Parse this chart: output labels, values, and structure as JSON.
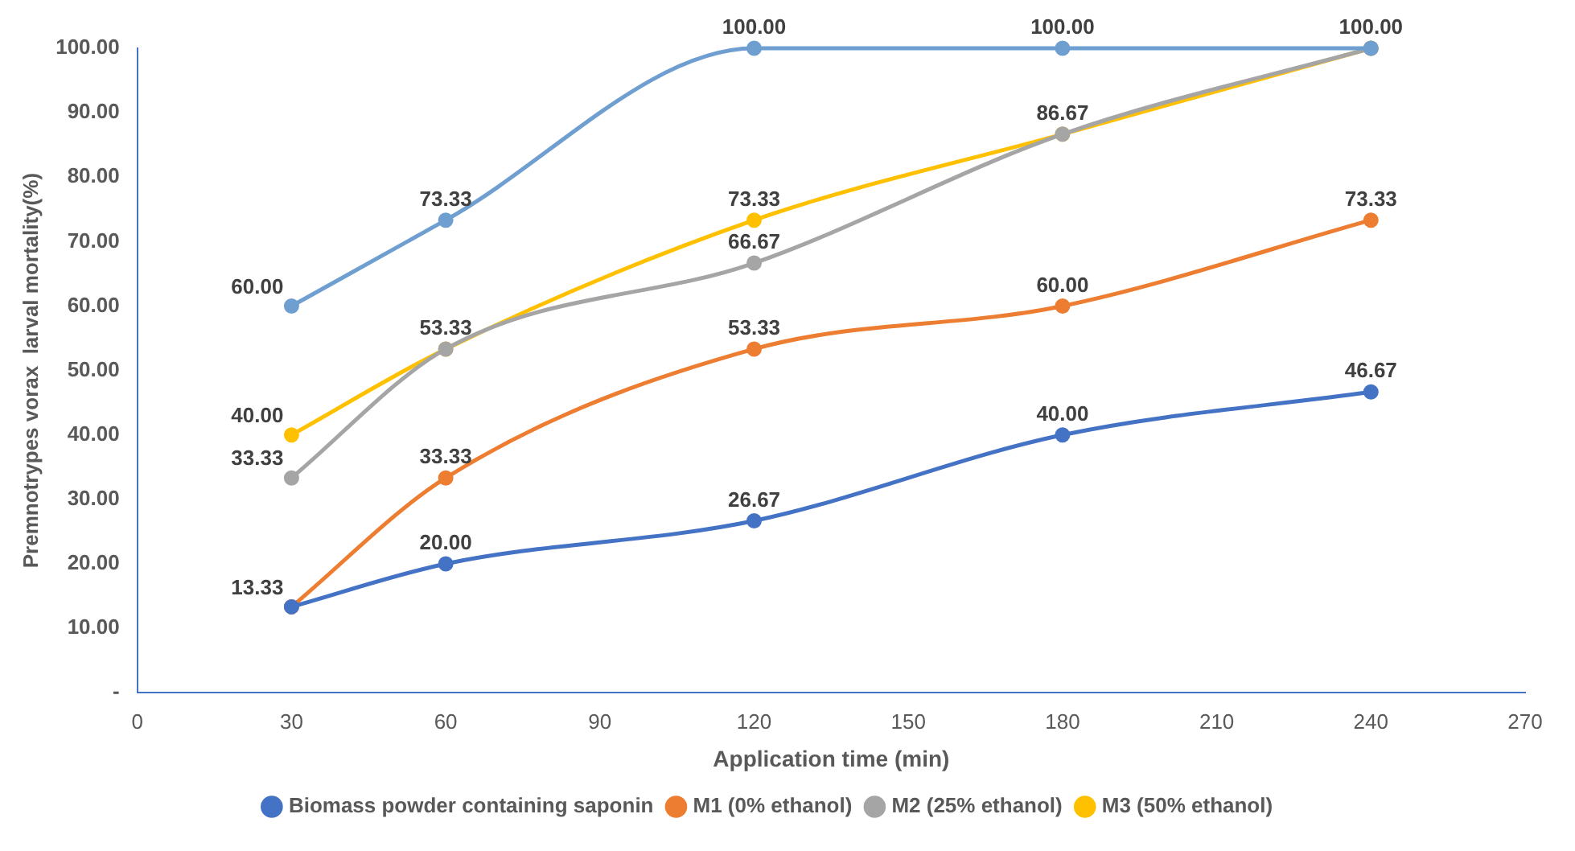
{
  "chart_data": {
    "type": "line",
    "xlabel": "Application time (min)",
    "ylabel": "Premnotrypes vorax  larval mortality(%)",
    "x": [
      30,
      60,
      120,
      180,
      240
    ],
    "xlim": [
      0,
      270
    ],
    "xticks": [
      0,
      30,
      60,
      90,
      120,
      150,
      180,
      210,
      240,
      270
    ],
    "ylim": [
      0,
      100
    ],
    "yticks": [
      {
        "value": 0,
        "label": "-"
      },
      {
        "value": 10,
        "label": "10.00"
      },
      {
        "value": 20,
        "label": "20.00"
      },
      {
        "value": 30,
        "label": "30.00"
      },
      {
        "value": 40,
        "label": "40.00"
      },
      {
        "value": 50,
        "label": "50.00"
      },
      {
        "value": 60,
        "label": "60.00"
      },
      {
        "value": 70,
        "label": "70.00"
      },
      {
        "value": 80,
        "label": "80.00"
      },
      {
        "value": 90,
        "label": "90.00"
      },
      {
        "value": 100,
        "label": "100.00"
      }
    ],
    "grid": false,
    "legend": "bottom",
    "marker": "circle",
    "line_style": "solid",
    "series": [
      {
        "color": "#6f9fd0",
        "values": [
          60,
          73.33,
          100,
          100,
          100
        ],
        "value_labels": [
          "60.00",
          "73.33",
          "100.00",
          "100.00",
          "100.00"
        ]
      },
      {
        "name": "Biomass powder containing saponin",
        "color": "#4472c4",
        "values": [
          13.33,
          20,
          26.67,
          40,
          46.67
        ],
        "value_labels": [
          "13.33",
          "20.00",
          "26.67",
          "40.00",
          "46.67"
        ]
      },
      {
        "name": "M1 (0% ethanol)",
        "color": "#ed7d31",
        "values": [
          13.33,
          33.33,
          53.33,
          60,
          73.33
        ],
        "value_labels": [
          null,
          "33.33",
          "53.33",
          "60.00",
          "73.33"
        ]
      },
      {
        "name": "M2 (25% ethanol)",
        "color": "#a5a5a5",
        "values": [
          33.33,
          53.33,
          66.67,
          86.67,
          100
        ],
        "value_labels": [
          "33.33",
          null,
          "66.67",
          null,
          null
        ]
      },
      {
        "name": "M3 (50% ethanol)",
        "color": "#ffc000",
        "values": [
          40,
          53.33,
          73.33,
          86.67,
          100
        ],
        "value_labels": [
          "40.00",
          "53.33",
          "73.33",
          "86.67",
          null
        ]
      }
    ]
  }
}
